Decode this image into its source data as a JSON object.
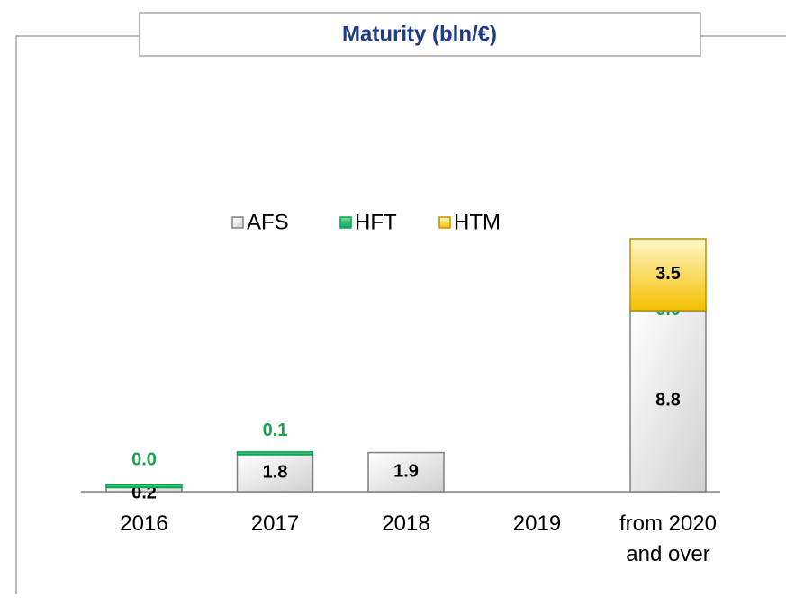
{
  "chart_data": {
    "type": "stacked_bar",
    "title": "Maturity (bln/€)",
    "categories": [
      "2016",
      "2017",
      "2018",
      "2019",
      "from 2020 and over"
    ],
    "series": [
      {
        "name": "AFS",
        "color": "#d9d9d9",
        "values": [
          0.2,
          1.8,
          1.9,
          null,
          8.8
        ],
        "value_labels": [
          "0.2",
          "1.8",
          "1.9",
          null,
          "8.8"
        ]
      },
      {
        "name": "HFT",
        "color": "#00a650",
        "values": [
          0.0,
          0.1,
          null,
          null,
          0.0
        ],
        "value_labels": [
          "0.0",
          "0.1",
          null,
          null,
          "0.0"
        ]
      },
      {
        "name": "HTM",
        "color": "#f5c000",
        "values": [
          null,
          null,
          null,
          null,
          3.5
        ],
        "value_labels": [
          null,
          null,
          null,
          null,
          "3.5"
        ]
      }
    ],
    "legend": "top-center"
  }
}
